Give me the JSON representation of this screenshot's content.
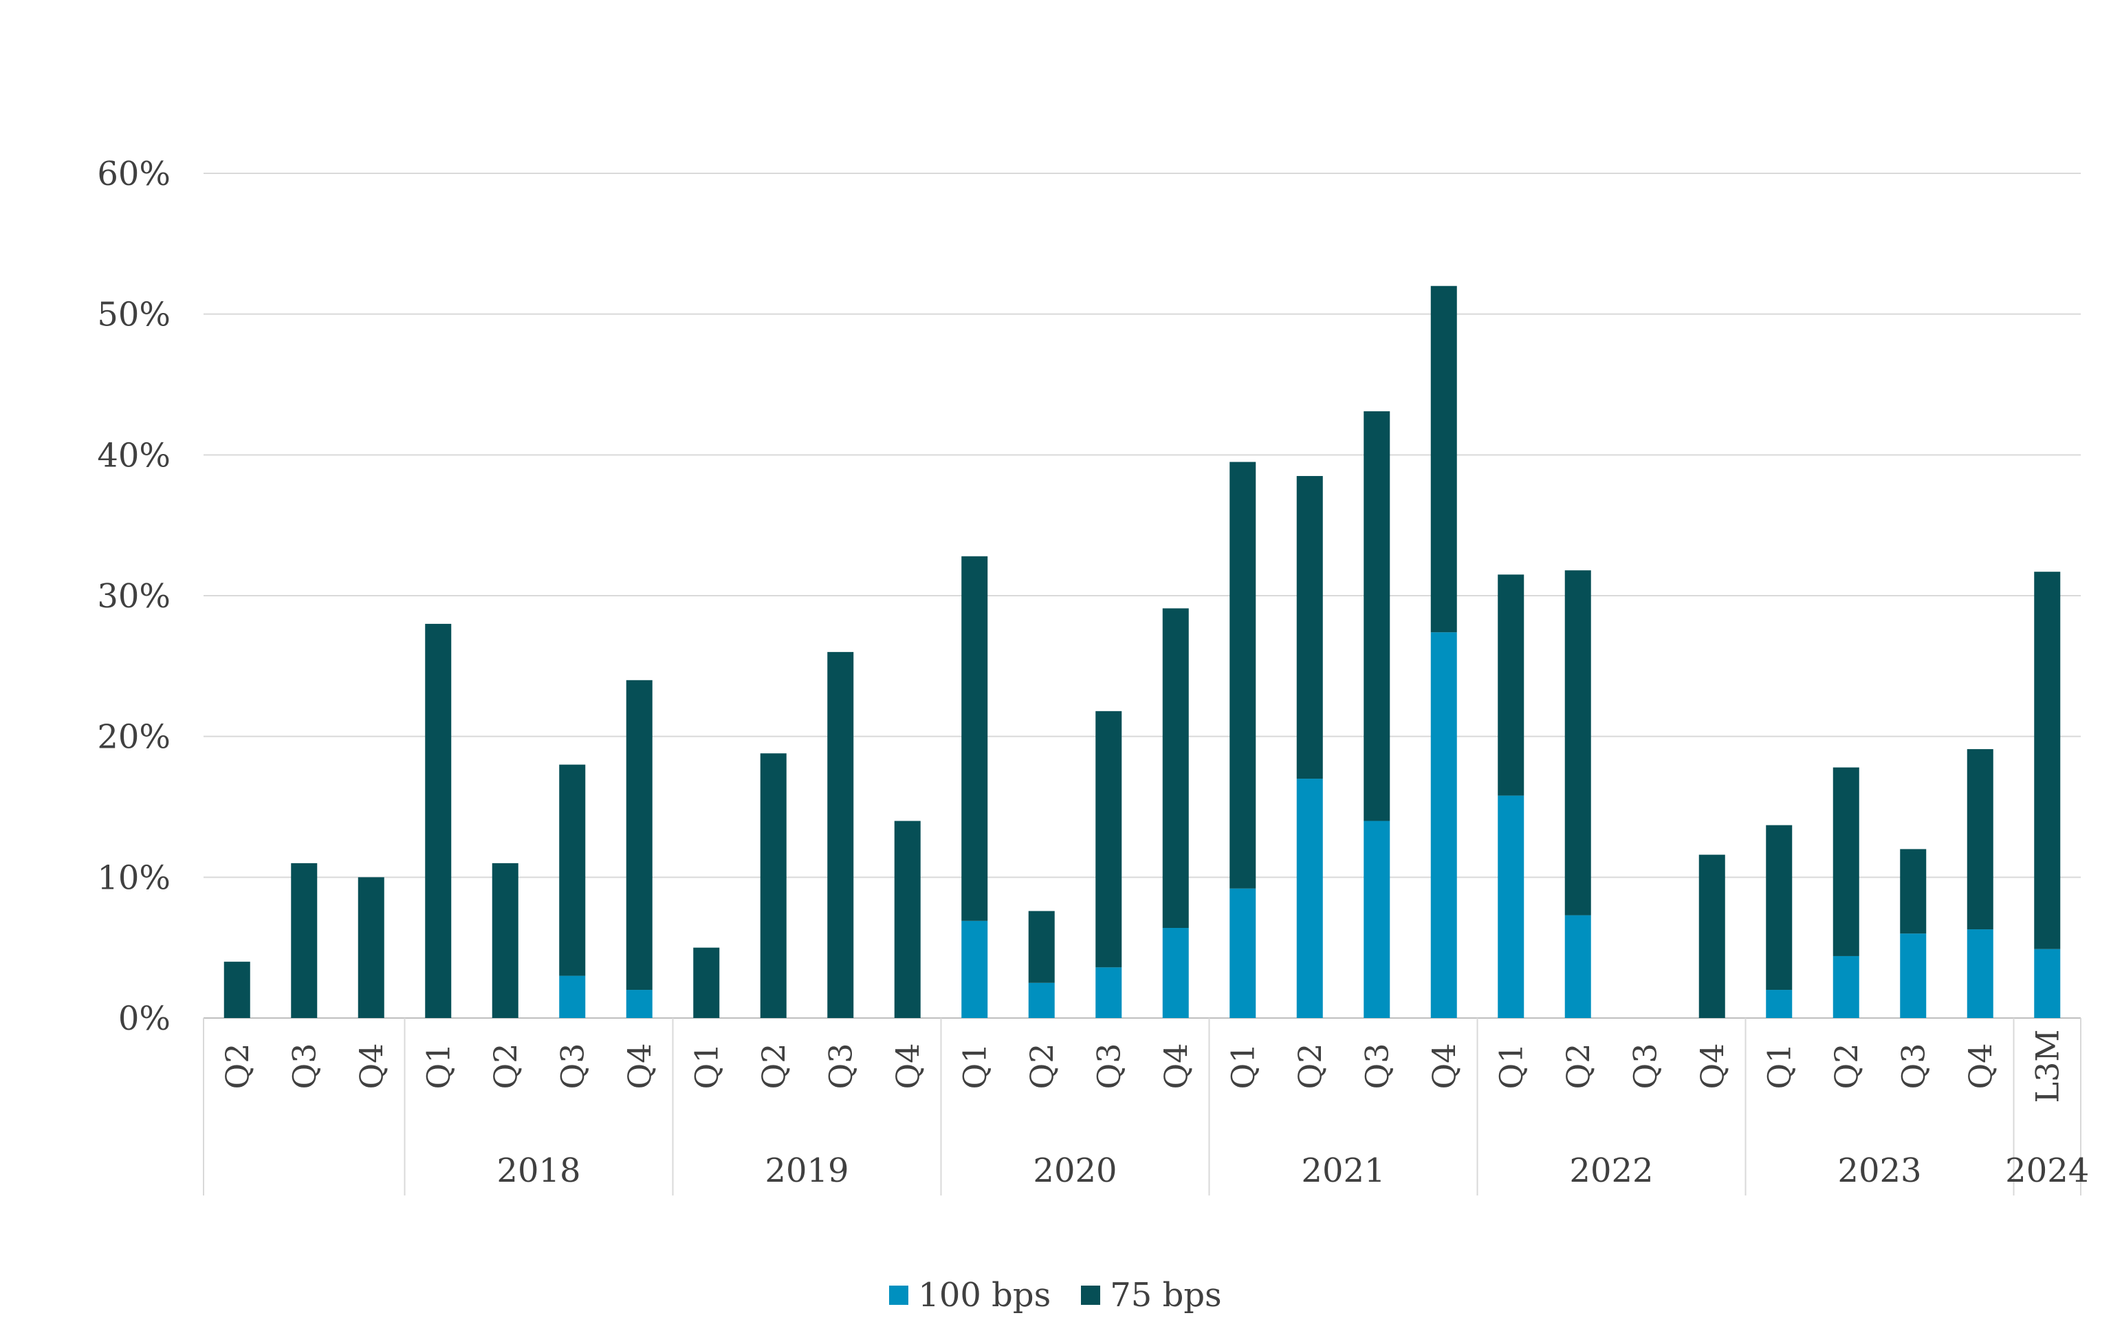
{
  "chart_data": {
    "type": "bar",
    "stacked": true,
    "title": "",
    "xlabel": "",
    "ylabel": "",
    "ylim": [
      0,
      0.6
    ],
    "y_ticks": [
      "0%",
      "10%",
      "20%",
      "30%",
      "40%",
      "50%",
      "60%"
    ],
    "grid": "horizontal",
    "legend_position": "bottom",
    "categories": [
      "Q2",
      "Q3",
      "Q4",
      "Q1",
      "Q2",
      "Q3",
      "Q4",
      "Q1",
      "Q2",
      "Q3",
      "Q4",
      "Q1",
      "Q2",
      "Q3",
      "Q4",
      "Q1",
      "Q2",
      "Q3",
      "Q4",
      "Q1",
      "Q2",
      "Q3",
      "Q4",
      "Q1",
      "Q2",
      "Q3",
      "Q4",
      "L3M"
    ],
    "groups": [
      {
        "label": "",
        "count": 3
      },
      {
        "label": "2018",
        "count": 4
      },
      {
        "label": "2019",
        "count": 4
      },
      {
        "label": "2020",
        "count": 4
      },
      {
        "label": "2021",
        "count": 4
      },
      {
        "label": "2022",
        "count": 4
      },
      {
        "label": "2023",
        "count": 4
      },
      {
        "label": "2024",
        "count": 1
      }
    ],
    "series": [
      {
        "name": "100 bps",
        "color": "#0090bf",
        "values": [
          0,
          0,
          0,
          0,
          0,
          0.03,
          0.02,
          0,
          0,
          0,
          0,
          0.069,
          0.025,
          0.036,
          0.064,
          0.092,
          0.17,
          0.14,
          0.274,
          0.158,
          0.073,
          0,
          0,
          0.02,
          0.044,
          0.06,
          0.063,
          0.049
        ]
      },
      {
        "name": "75 bps",
        "color": "#064f56",
        "values": [
          0.04,
          0.11,
          0.1,
          0.28,
          0.11,
          0.15,
          0.22,
          0.05,
          0.188,
          0.26,
          0.14,
          0.259,
          0.051,
          0.182,
          0.227,
          0.303,
          0.215,
          0.291,
          0.246,
          0.157,
          0.245,
          0,
          0.116,
          0.117,
          0.134,
          0.06,
          0.128,
          0.268
        ]
      }
    ]
  },
  "legend": {
    "items": [
      {
        "label": "100 bps",
        "color": "#0090bf"
      },
      {
        "label": "75 bps",
        "color": "#064f56"
      }
    ]
  }
}
